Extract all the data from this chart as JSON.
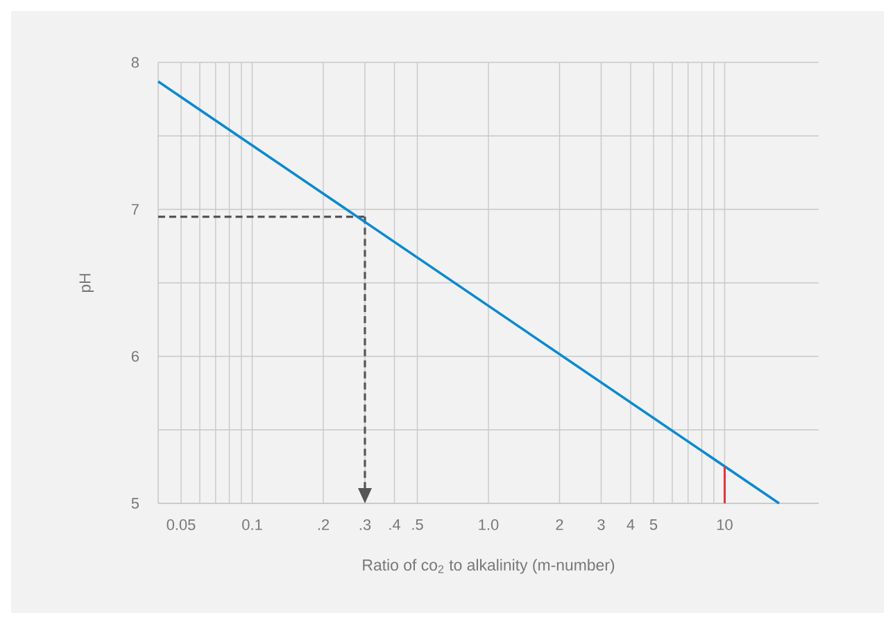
{
  "chart_data": {
    "type": "line",
    "xlabel": "Ratio of co$_{2}$ to alkalinity (m-number)",
    "ylabel": "pH",
    "log": "x",
    "x": [
      0.04,
      17
    ],
    "series": [
      {
        "color": "#0a8ad2",
        "values": [
          7.87,
          5.0
        ]
      },
      {
        "color": "#e8323c",
        "x": [
          10,
          10
        ],
        "values": [
          5.0,
          5.25
        ]
      }
    ],
    "xlim": [
      0.04,
      25
    ],
    "ylim": [
      5,
      8
    ],
    "xticks": [
      {
        "value": 0.05,
        "label": "0.05"
      },
      {
        "value": 0.06,
        "label": null
      },
      {
        "value": 0.07,
        "label": null
      },
      {
        "value": 0.08,
        "label": null
      },
      {
        "value": 0.09,
        "label": null
      },
      {
        "value": 0.1,
        "label": "0.1"
      },
      {
        "value": 0.2,
        "label": ".2"
      },
      {
        "value": 0.3,
        "label": ".3"
      },
      {
        "value": 0.4,
        "label": ".4"
      },
      {
        "value": 0.5,
        "label": ".5"
      },
      {
        "value": 1,
        "label": "1.0"
      },
      2,
      3,
      4,
      5,
      {
        "value": 6,
        "label": null
      },
      {
        "value": 7,
        "label": null
      },
      {
        "value": 8,
        "label": null
      },
      {
        "value": 9,
        "label": null
      },
      10
    ],
    "yticks": [
      5,
      {
        "value": 5.5,
        "label": null
      },
      6,
      {
        "value": 6.5,
        "label": null
      },
      7,
      {
        "value": 7.5,
        "label": null
      },
      8
    ],
    "grid": true,
    "marker": "none",
    "ref_lines": [
      {
        "axis": "y",
        "value": 6.95,
        "color": "#555555",
        "line_style": "dashed"
      },
      {
        "axis": "x",
        "value": 0.3,
        "color": "#555555",
        "line_style": "dashed"
      }
    ]
  }
}
